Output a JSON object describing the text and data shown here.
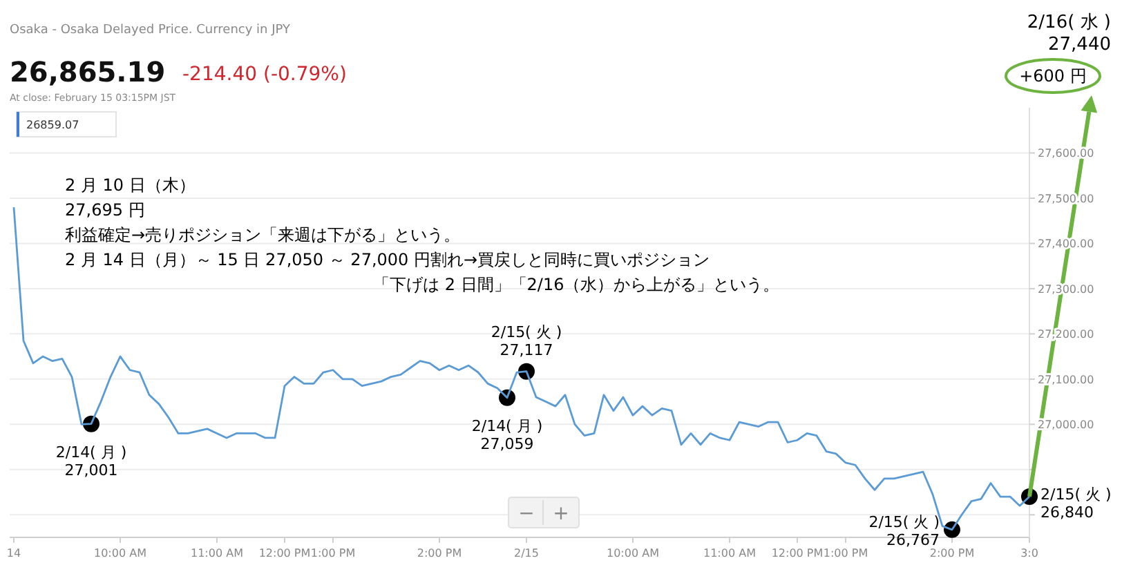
{
  "chart_data": {
    "type": "line",
    "subtitle": "Osaka - Osaka Delayed Price. Currency in JPY",
    "annotations": [
      "26,865.19",
      "-214.40 (-0.79%)",
      "At close: February 15 03:15PM JST",
      "26859.07",
      "2 月 10 日（木）",
      "27,695 円",
      "利益確定→売りポジション「来週は下がる」という。",
      "2 月 14 日（月）～ 15 日  27,050 ～ 27,000 円割れ→買戻しと同時に買いポジション",
      "「下げは 2 日間」「2/16（水）から上がる」という。",
      "2/16( 水 )",
      "27,440",
      "+600 円",
      "−",
      "+",
      {
        "text": "2/14( 月 )\n27,001",
        "y": 27001
      },
      {
        "text": "2/14( 月 )\n27,059",
        "y": 27059
      },
      {
        "text": "2/15( 火 )\n27,117",
        "y": 27117
      },
      "2/15( 火 )\n26,767",
      {
        "text": "2/15( 火 )\n26,840",
        "x": "3:0",
        "y": 26840
      }
    ],
    "categories": [
      "14",
      null,
      null,
      null,
      null,
      null,
      null,
      null,
      null,
      null,
      null,
      "10:00 AM",
      null,
      null,
      null,
      null,
      null,
      null,
      null,
      null,
      null,
      "11:00 AM",
      null,
      null,
      null,
      null,
      null,
      null,
      "12:00 PM",
      null,
      null,
      null,
      null,
      "1:00 PM",
      null,
      null,
      null,
      null,
      null,
      null,
      null,
      null,
      null,
      null,
      "2:00 PM",
      null,
      null,
      null,
      null,
      null,
      null,
      null,
      null,
      "2/15",
      null,
      null,
      null,
      null,
      null,
      null,
      null,
      null,
      null,
      null,
      "10:00 AM",
      null,
      null,
      null,
      null,
      null,
      null,
      null,
      null,
      null,
      "11:00 AM",
      null,
      null,
      null,
      null,
      null,
      null,
      "12:00 PM",
      null,
      null,
      null,
      null,
      "1:00 PM",
      null,
      null,
      null,
      null,
      null,
      null,
      null,
      null,
      null,
      null,
      "2:00 PM",
      null,
      null,
      null,
      null,
      null,
      null,
      null,
      "3:0"
    ],
    "series": [
      {
        "color": "#5b9bd5",
        "values": [
          27480,
          27185,
          27135,
          27150,
          27140,
          27145,
          27105,
          27000,
          27001,
          27050,
          27105,
          27150,
          27120,
          27115,
          27065,
          27045,
          27015,
          26980,
          26980,
          26985,
          26990,
          26980,
          26970,
          26980,
          26980,
          26980,
          26970,
          26970,
          27085,
          27105,
          27090,
          27090,
          27115,
          27120,
          27100,
          27100,
          27085,
          27090,
          27095,
          27105,
          27110,
          27125,
          27140,
          27135,
          27120,
          27130,
          27120,
          27130,
          27115,
          27090,
          27080,
          27059,
          27115,
          27117,
          27060,
          27050,
          27040,
          27065,
          27000,
          26975,
          26980,
          27065,
          27030,
          27060,
          27020,
          27040,
          27020,
          27035,
          27030,
          26955,
          26980,
          26955,
          26980,
          26970,
          26965,
          27005,
          27000,
          26995,
          27005,
          27005,
          26960,
          26965,
          26980,
          26975,
          26940,
          26935,
          26915,
          26910,
          26880,
          26855,
          26880,
          26880,
          26885,
          26890,
          26895,
          26845,
          26775,
          26767,
          26800,
          26830,
          26835,
          26870,
          26840,
          26840,
          26820,
          26840
        ]
      }
    ],
    "ylim": [
      26750,
      27700
    ],
    "yticks": [
      {
        "value": 26800,
        "label": null
      },
      {
        "value": 26900,
        "label": null
      },
      {
        "value": 27000,
        "label": "27,000.00"
      },
      {
        "value": 27100,
        "label": "27,100.00"
      },
      {
        "value": 27200,
        "label": "27,200.00"
      },
      {
        "value": 27300,
        "label": "27,300.00"
      },
      {
        "value": 27400,
        "label": "27,400.00"
      },
      {
        "value": 27500,
        "label": "27,500.00"
      },
      {
        "value": 27600,
        "label": "27,600.00"
      }
    ],
    "grid": "y"
  }
}
